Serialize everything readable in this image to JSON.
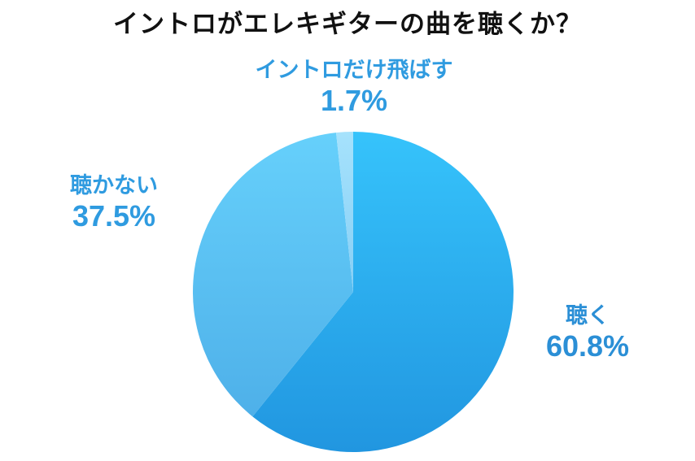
{
  "chart_data": {
    "type": "pie",
    "title": "イントロがエレキギターの曲を聴くか？",
    "slices": [
      {
        "label": "聴く",
        "value": 60.8,
        "display": "60.8%",
        "color": "#2ea8ea",
        "label_color": "#2b8fd6"
      },
      {
        "label": "聴かない",
        "value": 37.5,
        "display": "37.5%",
        "color": "#5ec4f4",
        "label_color": "#2f9be0"
      },
      {
        "label": "イントロだけ飛ばす",
        "value": 1.7,
        "display": "1.7%",
        "color": "#9fdcfb",
        "label_color": "#2f9be0"
      }
    ]
  }
}
